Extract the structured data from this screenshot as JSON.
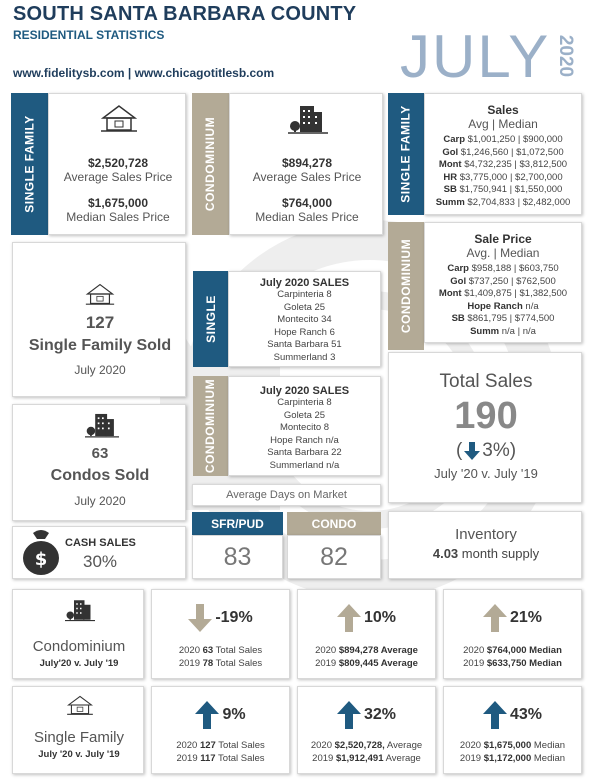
{
  "header": {
    "title": "SOUTH SANTA BARBARA COUNTY",
    "subtitle": "RESIDENTIAL STATISTICS",
    "websites": "www.fidelitysb.com | www.chicagotitlesb.com",
    "month": "JULY",
    "year": "2020"
  },
  "colors": {
    "navy": "#1f5a80",
    "tan": "#b3aa96",
    "header": "#1f3d5c",
    "month": "#9bb0c8"
  },
  "single_family_card": {
    "bar_label": "SINGLE FAMILY",
    "icon": "house-icon",
    "avg_price": "$2,520,728",
    "avg_label": "Average Sales Price",
    "median_price": "$1,675,000",
    "median_label": "Median Sales Price"
  },
  "condo_card": {
    "bar_label": "CONDOMINIUM",
    "icon": "condo-building-icon",
    "avg_price": "$894,278",
    "avg_label": "Average Sales Price",
    "median_price": "$764,000",
    "median_label": "Median Sales Price"
  },
  "sf_sales_table": {
    "bar_label": "SINGLE FAMILY",
    "title": "Sales",
    "subtitle": "Avg | Median",
    "rows": [
      {
        "area": "Carp",
        "values": "$1,001,250 | $900,000"
      },
      {
        "area": "Gol",
        "values": "$1,246,560 | $1,072,500"
      },
      {
        "area": "Mont",
        "values": "$4,732,235 | $3,812,500"
      },
      {
        "area": "HR",
        "values": "$3,775,000 | $2,700,000"
      },
      {
        "area": "SB",
        "values": "$1,750,941 | $1,550,000"
      },
      {
        "area": "Summ",
        "values": "$2,704,833 | $2,482,000"
      }
    ]
  },
  "condo_sales_table": {
    "bar_label": "CONDOMINIUM",
    "title": "Sale Price",
    "subtitle": "Avg. | Median",
    "rows": [
      {
        "area": "Carp",
        "values": "$958,188 | $603,750"
      },
      {
        "area": "Gol",
        "values": "$737,250 | $762,500"
      },
      {
        "area": "Mont",
        "values": "$1,409,875 | $1,382,500"
      },
      {
        "area": "Hope Ranch",
        "values": "n/a"
      },
      {
        "area": "SB",
        "values": "$861,795 | $774,500"
      },
      {
        "area": "Summ",
        "values": "n/a | n/a"
      }
    ]
  },
  "sf_sold": {
    "icon": "house-icon",
    "count": "127",
    "label": "Single Family Sold",
    "period": "July 2020"
  },
  "condos_sold": {
    "icon": "condo-building-icon",
    "count": "63",
    "label": "Condos Sold",
    "period": "July 2020"
  },
  "single_sales_list": {
    "bar_label": "SINGLE",
    "title": "July 2020 SALES",
    "rows": [
      "Carpinteria  8",
      "Goleta  25",
      "Montecito  34",
      "Hope Ranch  6",
      "Santa Barbara  51",
      "Summerland  3"
    ]
  },
  "condo_sales_list": {
    "bar_label": "CONDOMINIUM",
    "title": "July 2020 SALES",
    "rows": [
      "Carpinteria  8",
      "Goleta  25",
      "Montecito  8",
      "Hope Ranch  n/a",
      "Santa Barbara  22",
      "Summerland  n/a"
    ]
  },
  "total_sales": {
    "label": "Total Sales",
    "value": "190",
    "change": "3%)",
    "change_prefix": "(",
    "direction": "down",
    "comparison": "July '20 v. July '19"
  },
  "days_on_market": {
    "label": "Average Days on Market",
    "sfr_label": "SFR/PUD",
    "sfr_value": "83",
    "condo_label": "CONDO",
    "condo_value": "82"
  },
  "cash_sales": {
    "icon": "money-bag-icon",
    "label": "CASH SALES",
    "value": "30%"
  },
  "inventory": {
    "label": "Inventory",
    "value": "4.03",
    "unit": "month supply"
  },
  "comparisons": {
    "condo": {
      "icon": "condo-building-icon",
      "title": "Condominium",
      "period": "July'20 v. July '19",
      "total": {
        "direction": "down",
        "pct": "-19%",
        "line1_pre": "2020",
        "line1_num": "63",
        "line1_post": "Total Sales",
        "line2_pre": "2019",
        "line2_num": "78",
        "line2_post": "Total Sales"
      },
      "average": {
        "direction": "up",
        "pct": "10%",
        "line1_pre": "2020",
        "line1_num": "$894,278 Average",
        "line1_post": "",
        "line2_pre": "2019",
        "line2_num": "$809,445 Average",
        "line2_post": ""
      },
      "median": {
        "direction": "up",
        "pct": "21%",
        "line1_pre": "2020",
        "line1_num": "$764,000 Median",
        "line1_post": "",
        "line2_pre": "2019",
        "line2_num": "$633,750 Median",
        "line2_post": ""
      }
    },
    "sf": {
      "icon": "house-icon",
      "title": "Single Family",
      "period": "July '20 v. July '19",
      "total": {
        "direction": "up",
        "pct": "9%",
        "line1_pre": "2020",
        "line1_num": "127",
        "line1_post": "Total Sales",
        "line2_pre": "2019",
        "line2_num": "117",
        "line2_post": "Total Sales"
      },
      "average": {
        "direction": "up",
        "pct": "32%",
        "line1_pre": "2020",
        "line1_num": "$2,520,728,",
        "line1_post": "Average",
        "line2_pre": "2019",
        "line2_num": "$1,912,491",
        "line2_post": "Average"
      },
      "median": {
        "direction": "up",
        "pct": "43%",
        "line1_pre": "2020",
        "line1_num": "$1,675,000",
        "line1_post": "Median",
        "line2_pre": "2019",
        "line2_num": "$1,172,000",
        "line2_post": "Median"
      }
    }
  }
}
